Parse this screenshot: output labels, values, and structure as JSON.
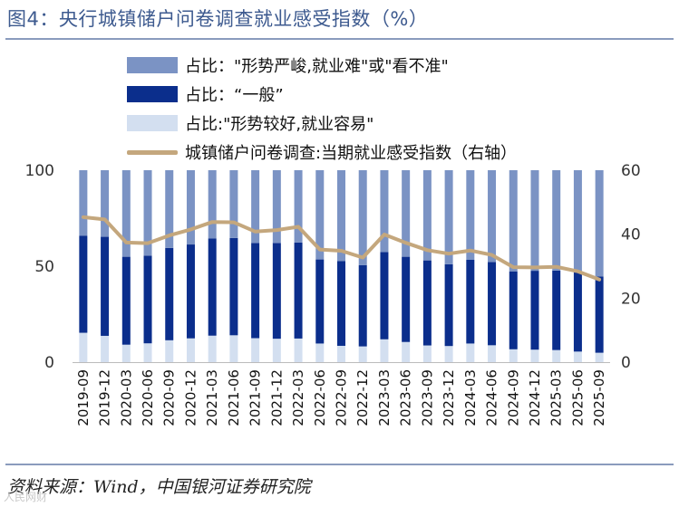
{
  "figure": {
    "title": "图4：央行城镇储户问卷调查就业感受指数（%）",
    "source": "资料来源：Wind，中国银河证券研究院",
    "watermark": "人民网财"
  },
  "colors": {
    "severe": "#7b93c4",
    "general": "#0b2e8c",
    "easy": "#d3dff0",
    "line": "#c4a77d",
    "title": "#3d5a8f"
  },
  "chart_data": {
    "type": "bar",
    "stacked": true,
    "categories": [
      "2019-09",
      "2019-12",
      "2020-03",
      "2020-06",
      "2020-09",
      "2020-12",
      "2021-03",
      "2021-06",
      "2021-09",
      "2021-12",
      "2022-03",
      "2022-06",
      "2022-09",
      "2022-12",
      "2023-03",
      "2023-06",
      "2023-09",
      "2023-12",
      "2024-03",
      "2024-06",
      "2024-09",
      "2024-12",
      "2025-03",
      "2025-06",
      "2025-09"
    ],
    "series": [
      {
        "name": "占比：“一般”",
        "key": "general",
        "values": [
          50.5,
          51.6,
          45.8,
          45.7,
          48.1,
          48.9,
          50.6,
          50.7,
          49.6,
          49.9,
          50.0,
          43.8,
          44.1,
          42.3,
          45.5,
          44.4,
          44.3,
          42.6,
          43.6,
          43.4,
          40.6,
          41.1,
          41.4,
          41.6,
          39.7
        ]
      },
      {
        "name": "占比：\"形势较好,就业容易\"",
        "key": "easy",
        "values": [
          15.3,
          13.7,
          9.1,
          9.8,
          11.4,
          12.4,
          13.8,
          14.0,
          12.5,
          12.2,
          12.3,
          9.7,
          8.5,
          8.2,
          11.9,
          10.5,
          8.7,
          8.4,
          9.7,
          8.8,
          6.7,
          6.5,
          6.3,
          5.5,
          4.9
        ]
      },
      {
        "name": "占比：\"形势严峻,就业难\"或\"看不准\"",
        "key": "severe",
        "values": [
          34.2,
          34.7,
          45.1,
          44.5,
          40.5,
          38.7,
          35.6,
          35.3,
          37.9,
          37.9,
          37.7,
          46.5,
          47.4,
          49.5,
          42.6,
          45.1,
          47.0,
          49.0,
          46.7,
          47.8,
          52.7,
          52.4,
          52.3,
          52.9,
          55.4
        ]
      }
    ],
    "line": {
      "name": "城镇储户问卷调查:当期就业感受指数（右轴）",
      "axis": "right",
      "values": [
        45.3,
        44.6,
        37.4,
        37.2,
        39.6,
        41.5,
        43.8,
        43.7,
        40.8,
        41.3,
        42.3,
        35.2,
        34.8,
        32.7,
        39.9,
        37.3,
        35.0,
        33.9,
        34.9,
        33.5,
        29.7,
        29.6,
        29.8,
        28.4,
        25.8
      ]
    },
    "ylim_left": [
      0,
      100
    ],
    "yticks_left": [
      "0",
      "50",
      "100"
    ],
    "ylim_right": [
      0,
      60
    ],
    "yticks_right": [
      "0",
      "20",
      "40",
      "60"
    ]
  },
  "legend": [
    {
      "label": "占比：\"形势严峻,就业难\"或\"看不准\"",
      "color_key": "severe",
      "kind": "bar"
    },
    {
      "label": "占比：“一般”",
      "color_key": "general",
      "kind": "bar"
    },
    {
      "label": "占比:\"形势较好,就业容易\"",
      "color_key": "easy",
      "kind": "bar"
    },
    {
      "label": "城镇储户问卷调查:当期就业感受指数（右轴）",
      "color_key": "line",
      "kind": "line"
    }
  ]
}
